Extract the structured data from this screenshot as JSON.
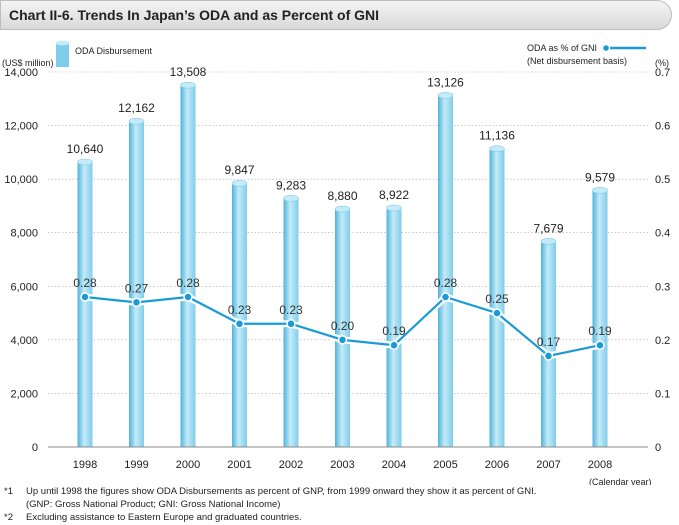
{
  "title": "Chart II-6. Trends In Japan’s ODA and as Percent of GNI",
  "chart_data": {
    "type": "bar+line",
    "categories": [
      "1998",
      "1999",
      "2000",
      "2001",
      "2002",
      "2003",
      "2004",
      "2005",
      "2006",
      "2007",
      "2008"
    ],
    "series": [
      {
        "name": "ODA Disbursement",
        "type": "bar",
        "axis": "left",
        "values": [
          10640,
          12162,
          13508,
          9847,
          9283,
          8880,
          8922,
          13126,
          11136,
          7679,
          9579
        ],
        "labels": [
          "10,640",
          "12,162",
          "13,508",
          "9,847",
          "9,283",
          "8,880",
          "8,922",
          "13,126",
          "11,136",
          "7,679",
          "9,579"
        ]
      },
      {
        "name": "ODA as % of GNI",
        "type": "line",
        "axis": "right",
        "values": [
          0.28,
          0.27,
          0.28,
          0.23,
          0.23,
          0.2,
          0.19,
          0.28,
          0.25,
          0.17,
          0.19
        ],
        "labels": [
          "0.28",
          "0.27",
          "0.28",
          "0.23",
          "0.23",
          "0.20",
          "0.19",
          "0.28",
          "0.25",
          "0.17",
          "0.19"
        ]
      }
    ],
    "y_left": {
      "unit": "(US$ million)",
      "ylim": [
        0,
        14000
      ],
      "ticks": [
        "0",
        "2,000",
        "4,000",
        "6,000",
        "8,000",
        "10,000",
        "12,000",
        "14,000"
      ]
    },
    "y_right": {
      "unit": "(%)",
      "ylim": [
        0,
        0.7
      ],
      "ticks": [
        "0",
        "0.1",
        "0.2",
        "0.3",
        "0.4",
        "0.5",
        "0.6",
        "0.7"
      ]
    },
    "xlabel": "(Calendar year)",
    "legend": {
      "bar": "ODA Disbursement",
      "line": "ODA as % of GNI",
      "line_sub": "(Net disbursement basis)"
    },
    "colors": {
      "bar": "#7fcdea",
      "bar_light": "#c5ebf8",
      "bar_dark": "#4fb3da",
      "line": "#1a9ad6",
      "grid": "#aaaaaa"
    }
  },
  "notes": [
    {
      "mark": "*1",
      "text": "Up until 1998 the figures show ODA Disbursements as percent of GNP, from 1999 onward they show it as percent of GNI."
    },
    {
      "mark": "",
      "text": "(GNP: Gross National Product; GNI: Gross National Income)"
    },
    {
      "mark": "*2",
      "text": "Excluding assistance to Eastern Europe and graduated countries."
    }
  ]
}
